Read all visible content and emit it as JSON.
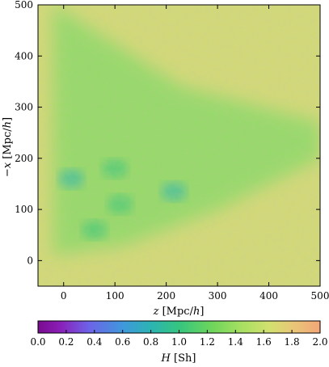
{
  "chart_data": {
    "type": "heatmap",
    "title": "",
    "xlabel_italic": "z",
    "xlabel_unit": "[Mpc/",
    "xlabel_unit_h": "h",
    "xlabel_close": "]",
    "ylabel_italic": "−x",
    "ylabel_unit": "[Mpc/",
    "ylabel_unit_h": "h",
    "ylabel_close": "]",
    "xlim": [
      -50,
      500
    ],
    "ylim": [
      -50,
      500
    ],
    "xticks": [
      0,
      100,
      200,
      300,
      400,
      500
    ],
    "yticks": [
      0,
      100,
      200,
      300,
      400,
      500
    ],
    "colorbar": {
      "label_italic": "H",
      "label_unit": "[Sh]",
      "range": [
        0.0,
        2.0
      ],
      "ticks": [
        "0.0",
        "0.2",
        "0.4",
        "0.6",
        "0.8",
        "1.0",
        "1.2",
        "1.4",
        "1.6",
        "1.8",
        "2.0"
      ],
      "colormap": "spectral"
    },
    "field": {
      "background_value": 1.5,
      "interior_value": 1.28,
      "interior_region_vertices": [
        [
          -20,
          500
        ],
        [
          230,
          340
        ],
        [
          500,
          270
        ],
        [
          500,
          200
        ],
        [
          300,
          100
        ],
        [
          120,
          30
        ],
        [
          -20,
          10
        ]
      ],
      "dense_patches": [
        {
          "x": 15,
          "y": 160,
          "value": 0.9
        },
        {
          "x": 215,
          "y": 135,
          "value": 0.95
        },
        {
          "x": 110,
          "y": 110,
          "value": 1.05
        },
        {
          "x": 60,
          "y": 60,
          "value": 1.05
        },
        {
          "x": 100,
          "y": 180,
          "value": 1.1
        }
      ]
    }
  }
}
